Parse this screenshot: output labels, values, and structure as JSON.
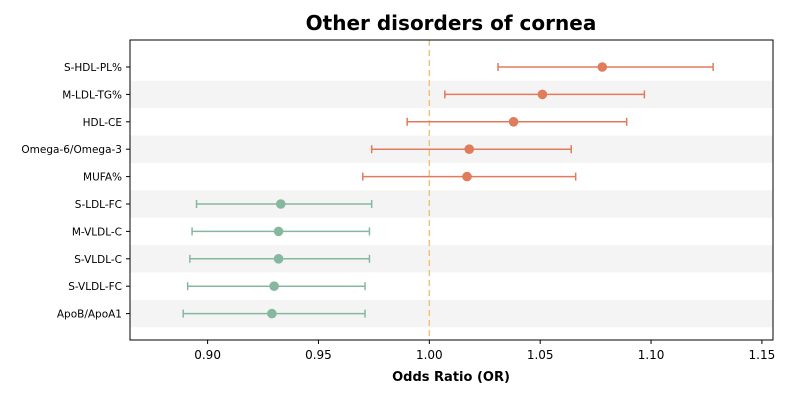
{
  "chart_data": {
    "type": "scatter",
    "title": "Other disorders of cornea",
    "xlabel": "Odds Ratio (OR)",
    "ylabel": "",
    "xlim": [
      0.865,
      1.155
    ],
    "xticks": [
      "0.90",
      "0.95",
      "1.00",
      "1.05",
      "1.10",
      "1.15"
    ],
    "xtick_values": [
      0.9,
      0.95,
      1.0,
      1.05,
      1.1,
      1.15
    ],
    "reference_line": 1.0,
    "grid": false,
    "row_shading": "alternating",
    "colors": {
      "risk": "#E07B5B",
      "protective": "#86B8A0",
      "reference": "#F0C27B",
      "band": "#F4F4F4"
    },
    "rows": [
      {
        "label": "S-HDL-PL%",
        "or": 1.078,
        "lower": 1.031,
        "upper": 1.128,
        "group": "risk"
      },
      {
        "label": "M-LDL-TG%",
        "or": 1.051,
        "lower": 1.007,
        "upper": 1.097,
        "group": "risk"
      },
      {
        "label": "HDL-CE",
        "or": 1.038,
        "lower": 0.99,
        "upper": 1.089,
        "group": "risk"
      },
      {
        "label": "Omega-6/Omega-3",
        "or": 1.018,
        "lower": 0.974,
        "upper": 1.064,
        "group": "risk"
      },
      {
        "label": "MUFA%",
        "or": 1.017,
        "lower": 0.97,
        "upper": 1.066,
        "group": "risk"
      },
      {
        "label": "S-LDL-FC",
        "or": 0.933,
        "lower": 0.895,
        "upper": 0.974,
        "group": "protective"
      },
      {
        "label": "M-VLDL-C",
        "or": 0.932,
        "lower": 0.893,
        "upper": 0.973,
        "group": "protective"
      },
      {
        "label": "S-VLDL-C",
        "or": 0.932,
        "lower": 0.892,
        "upper": 0.973,
        "group": "protective"
      },
      {
        "label": "S-VLDL-FC",
        "or": 0.93,
        "lower": 0.891,
        "upper": 0.971,
        "group": "protective"
      },
      {
        "label": "ApoB/ApoA1",
        "or": 0.929,
        "lower": 0.889,
        "upper": 0.971,
        "group": "protective"
      }
    ]
  }
}
